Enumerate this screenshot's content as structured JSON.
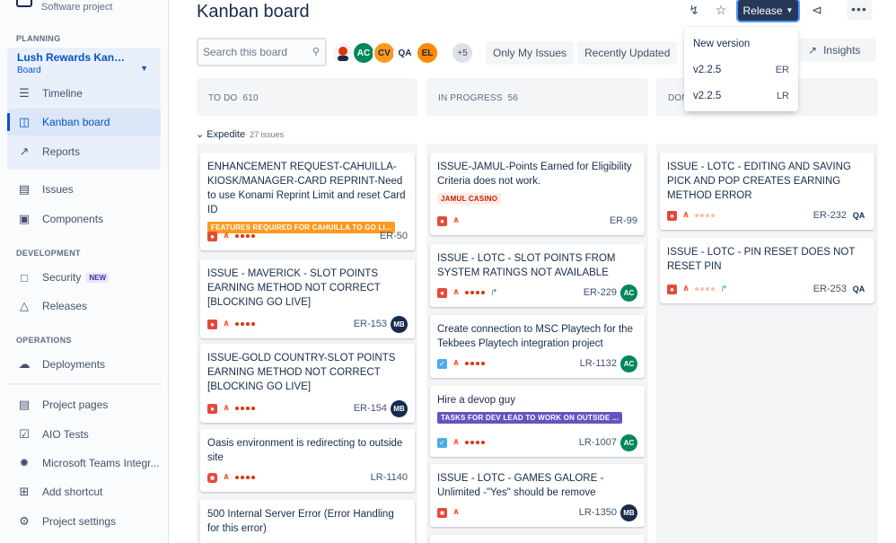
{
  "sidebar": {
    "project_type": "Software project",
    "planning_title": "PLANNING",
    "board_name": "Lush Rewards Kanba...",
    "board_type": "Board",
    "items": [
      {
        "label": "Timeline",
        "icon": "timeline-icon"
      },
      {
        "label": "Kanban board",
        "icon": "board-icon"
      },
      {
        "label": "Reports",
        "icon": "reports-icon"
      },
      {
        "label": "Issues",
        "icon": "issues-icon"
      },
      {
        "label": "Components",
        "icon": "components-icon"
      },
      {
        "label": "Security",
        "icon": "lock-icon",
        "badge": "NEW"
      },
      {
        "label": "Releases",
        "icon": "ship-icon"
      },
      {
        "label": "Deployments",
        "icon": "cloud-icon"
      },
      {
        "label": "Project pages",
        "icon": "page-icon"
      },
      {
        "label": "AIO Tests",
        "icon": "aio-icon"
      },
      {
        "label": "Microsoft Teams Integr...",
        "icon": "teams-icon"
      },
      {
        "label": "Add shortcut",
        "icon": "add-shortcut-icon"
      },
      {
        "label": "Project settings",
        "icon": "settings-icon"
      }
    ],
    "development_title": "DEVELOPMENT",
    "operations_title": "OPERATIONS"
  },
  "header": {
    "title": "Kanban board",
    "release_label": "Release"
  },
  "toolbar": {
    "search_placeholder": "Search this board",
    "avatars": [
      {
        "initials": "",
        "color": "#de350b",
        "kind": "photo"
      },
      {
        "initials": "AC",
        "color": "#00875a"
      },
      {
        "initials": "CV",
        "color": "#ff991f"
      },
      {
        "initials": "QA",
        "color": "#ffffff",
        "kind": "logo"
      },
      {
        "initials": "EL",
        "color": "#ff8b00"
      },
      {
        "initials": "+5",
        "color": "#dfe1e6"
      }
    ],
    "only_my_issues": "Only My Issues",
    "recently_updated": "Recently Updated",
    "insights": "Insights"
  },
  "columns": [
    {
      "name": "TO DO",
      "count": "610"
    },
    {
      "name": "IN PROGRESS",
      "count": "56"
    },
    {
      "name": "DONE",
      "count": ""
    }
  ],
  "swimlane": {
    "name": "Expedite",
    "count": "27 issues"
  },
  "release_menu": {
    "items": [
      {
        "label": "New version",
        "project": ""
      },
      {
        "label": "v2.2.5",
        "project": "ER"
      },
      {
        "label": "v2.2.5",
        "project": "LR"
      }
    ]
  },
  "cards": {
    "todo": [
      {
        "summary": "ENHANCEMENT REQUEST-CAHUILLA-KIOSK/MANAGER-CARD REPRINT-Need to use Konami Reprint Limit and reset Card ID",
        "epic": "FEATURES REQUIRED FOR CAHUILLA TO GO LI...",
        "key": "ER-50",
        "assignee": ""
      },
      {
        "summary": "ISSUE - MAVERICK - SLOT POINTS EARNING METHOD NOT CORRECT [BLOCKING GO LIVE]",
        "key": "ER-153",
        "assignee": "MB"
      },
      {
        "summary": "ISSUE-GOLD COUNTRY-SLOT POINTS EARNING METHOD NOT CORRECT [BLOCKING GO LIVE]",
        "key": "ER-154",
        "assignee": "MB"
      },
      {
        "summary": "Oasis environment is redirecting to outside site",
        "key": "LR-1140",
        "assignee": ""
      },
      {
        "summary": "500 Internal Server Error (Error Handling for this error)",
        "key": "",
        "assignee": ""
      }
    ],
    "inprogress": [
      {
        "summary": "ISSUE-JAMUL-Points Earned for Eligibility Criteria does not work.",
        "epic": "JAMUL CASINO",
        "key": "ER-99",
        "assignee": ""
      },
      {
        "summary": "ISSUE - LOTC - SLOT POINTS FROM SYSTEM RATINGS NOT AVAILABLE",
        "key": "ER-229",
        "assignee": "AC"
      },
      {
        "summary": "Create connection to MSC Playtech for the Tekbees Playtech integration project",
        "key": "LR-1132",
        "assignee": "AC"
      },
      {
        "summary": "Hire a devop guy",
        "epic": "TASKS FOR DEV LEAD TO WORK ON OUTSIDE ...",
        "key": "LR-1007",
        "assignee": "AC"
      },
      {
        "summary": "ISSUE - LOTC - GAMES GALORE - Unlimited -\"Yes\" should be remove",
        "key": "LR-1350",
        "assignee": "MB"
      }
    ],
    "done": [
      {
        "summary": "ISSUE - LOTC - EDITING AND SAVING PICK AND POP CREATES EARNING METHOD ERROR",
        "key": "ER-232",
        "assignee": "QA"
      },
      {
        "summary": "ISSUE - LOTC - PIN RESET DOES NOT RESET PIN",
        "key": "ER-253",
        "assignee": "QA"
      }
    ]
  },
  "colors": {
    "accent": "#0052cc",
    "release_bg": "#253858",
    "epic_orange": "#ff991f",
    "epic_red_text": "#bf2600",
    "epic_purple": "#6554c0",
    "avatar_mb": "#172b4d",
    "avatar_ac": "#00875a"
  }
}
